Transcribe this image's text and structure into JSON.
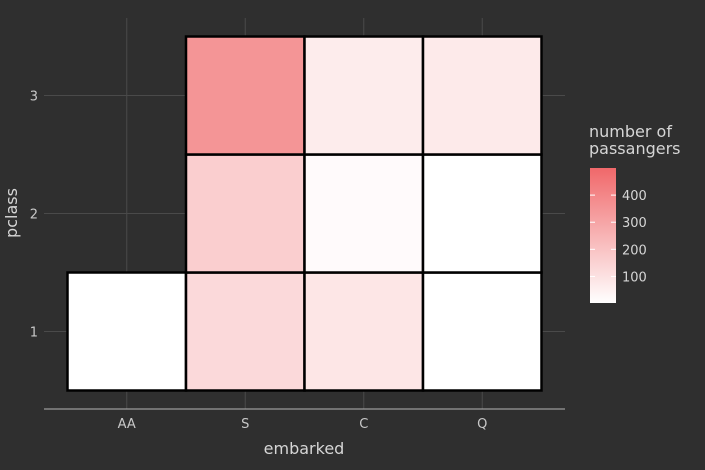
{
  "chart_data": {
    "type": "heatmap",
    "x_categories": [
      "AA",
      "S",
      "C",
      "Q"
    ],
    "y_categories": [
      "1",
      "2",
      "3"
    ],
    "xlabel": "embarked",
    "ylabel": "pclass",
    "cells": [
      {
        "x": "AA",
        "y": "1",
        "value": 2
      },
      {
        "x": "S",
        "y": "1",
        "value": 127
      },
      {
        "x": "C",
        "y": "1",
        "value": 85
      },
      {
        "x": "Q",
        "y": "1",
        "value": 2
      },
      {
        "x": "S",
        "y": "2",
        "value": 164
      },
      {
        "x": "C",
        "y": "2",
        "value": 17
      },
      {
        "x": "Q",
        "y": "2",
        "value": 3
      },
      {
        "x": "S",
        "y": "3",
        "value": 353
      },
      {
        "x": "C",
        "y": "3",
        "value": 66
      },
      {
        "x": "Q",
        "y": "3",
        "value": 72
      }
    ],
    "legend": {
      "title_lines": [
        "number of",
        "passangers"
      ],
      "ticks": [
        100,
        200,
        300,
        400
      ],
      "min": 2,
      "max": 500,
      "color_low": "#ffffff",
      "color_high": "#f0686a",
      "placement": "right"
    },
    "grid": true,
    "colors": {
      "background": "#2f2f2f",
      "grid": "#4a4a4a",
      "cell_border": "#000000"
    }
  }
}
